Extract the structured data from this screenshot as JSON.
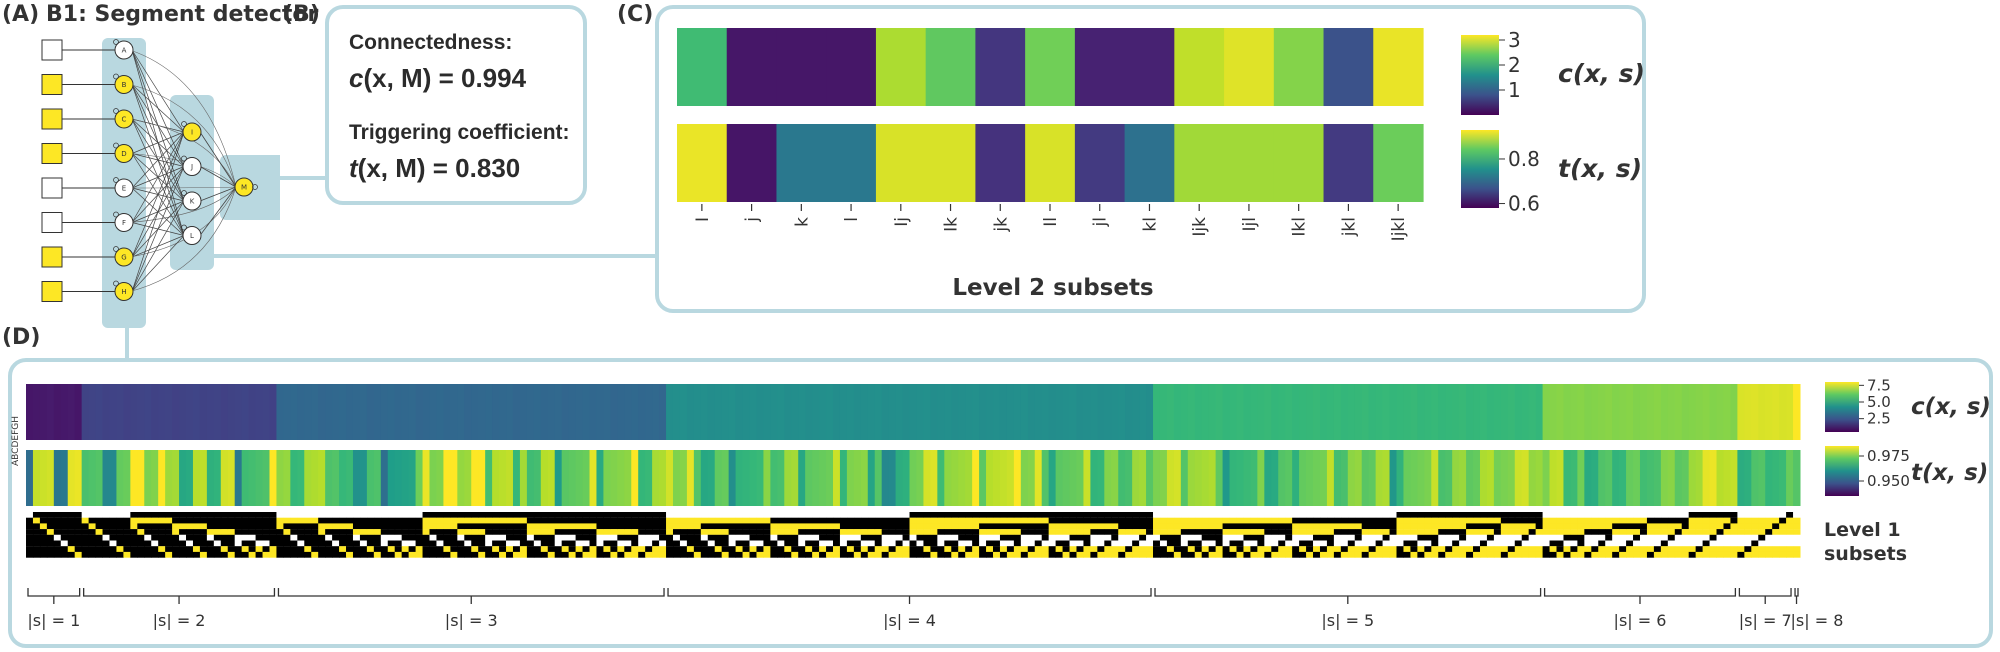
{
  "panels": {
    "a_label": "(A)",
    "a_title": "B1: Segment detector",
    "b_label": "(B)",
    "c_label": "(C)",
    "d_label": "(D)"
  },
  "network": {
    "inputs": [
      "A",
      "B",
      "C",
      "D",
      "E",
      "F",
      "G",
      "H"
    ],
    "input_active": [
      false,
      true,
      true,
      true,
      false,
      false,
      true,
      true
    ],
    "hidden": [
      "I",
      "J",
      "K",
      "L"
    ],
    "hidden_active": [
      true,
      false,
      false,
      false
    ],
    "output": "M",
    "output_active": true,
    "colors": {
      "active": "#fde725",
      "inactive": "#ffffff",
      "group_bg": "#b9d8e0",
      "stroke": "#333333"
    }
  },
  "panel_b": {
    "connectedness_label": "Connectedness:",
    "connectedness_sym": "c",
    "connectedness_args": "(x, M) = 0.994",
    "trigger_label": "Triggering coefficient:",
    "trigger_sym": "t",
    "trigger_args": "(x, M) = 0.830"
  },
  "panel_c": {
    "xlabel": "Level 2 subsets",
    "c_label": "c(x, s)",
    "t_label": "t(x, s)",
    "c_ticks": [
      "3",
      "2",
      "1"
    ],
    "t_ticks": [
      "0.8",
      "0.6"
    ]
  },
  "panel_d": {
    "c_label": "c(x, s)",
    "t_label": "t(x, s)",
    "c_ticks": [
      "7.5",
      "5.0",
      "2.5"
    ],
    "t_ticks": [
      "0.975",
      "0.950"
    ],
    "rows_label": "ABCDEFGH",
    "level1_line1": "Level 1",
    "level1_line2": "subsets",
    "size_labels": [
      "|s| = 1",
      "|s| = 2",
      "|s| = 3",
      "|s| = 4",
      "|s| = 5",
      "|s| = 6",
      "|s| = 7",
      "|s| = 8"
    ]
  },
  "chart_data": [
    {
      "type": "heatmap",
      "title": "",
      "xlabel": "Level 2 subsets",
      "categories": [
        "I",
        "j",
        "k",
        "l",
        "Ij",
        "Ik",
        "jk",
        "Il",
        "jl",
        "kl",
        "Ijk",
        "Ijl",
        "Ikl",
        "jkl",
        "Ijkl"
      ],
      "series": [
        {
          "name": "c(x, s)",
          "values": [
            2.2,
            0.2,
            0.2,
            0.2,
            2.8,
            2.4,
            0.5,
            2.5,
            0.3,
            0.3,
            2.9,
            3.05,
            2.6,
            0.8,
            3.1
          ]
        },
        {
          "name": "t(x, s)",
          "values": [
            0.92,
            0.6,
            0.72,
            0.72,
            0.91,
            0.91,
            0.63,
            0.91,
            0.64,
            0.71,
            0.88,
            0.88,
            0.88,
            0.64,
            0.85
          ]
        }
      ],
      "c_range": [
        0,
        3.2
      ],
      "t_range": [
        0.58,
        0.93
      ]
    },
    {
      "type": "heatmap",
      "xlabel": "Level 1 subsets",
      "group_sizes": [
        1,
        2,
        3,
        4,
        5,
        6,
        7,
        8
      ],
      "group_counts": [
        8,
        28,
        56,
        70,
        56,
        28,
        8,
        1
      ],
      "c_by_size": [
        1.0,
        2.0,
        3.0,
        4.2,
        5.5,
        6.6,
        7.6,
        8.0
      ],
      "c_range": [
        0.5,
        8.0
      ],
      "t_range": [
        0.935,
        0.985
      ]
    }
  ]
}
